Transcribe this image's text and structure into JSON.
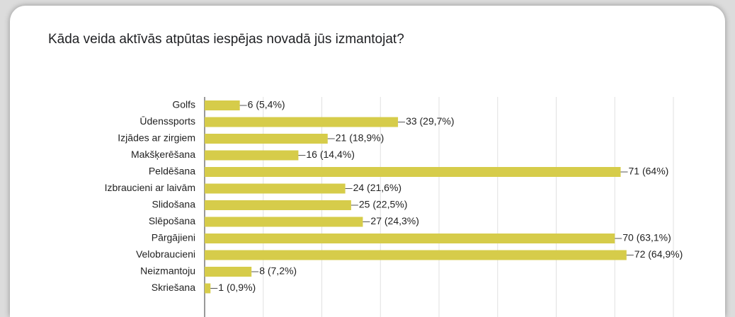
{
  "chart_data": {
    "type": "bar",
    "orientation": "horizontal",
    "title": "Kāda veida aktīvās atpūtas iespējas novadā jūs izmantojat?",
    "categories": [
      "Golfs",
      "Ūdenssports",
      "Izjādes ar zirgiem",
      "Makšķerēšana",
      "Peldēšana",
      "Izbraucieni ar laivām",
      "Slidošana",
      "Slēpošana",
      "Pārgājieni",
      "Velobraucieni",
      "Neizmantoju",
      "Skriešana"
    ],
    "values": [
      6,
      33,
      21,
      16,
      71,
      24,
      25,
      27,
      70,
      72,
      8,
      1
    ],
    "value_labels": [
      "6 (5,4%)",
      "33 (29,7%)",
      "21 (18,9%)",
      "16 (14,4%)",
      "71 (64%)",
      "24 (21,6%)",
      "25 (22,5%)",
      "27 (24,3%)",
      "70 (63,1%)",
      "72 (64,9%)",
      "8 (7,2%)",
      "1 (0,9%)"
    ],
    "color": "#d6cc4a",
    "xlim": [
      0,
      80
    ],
    "xticks": [
      0,
      10,
      20,
      30,
      40,
      50,
      60,
      70,
      80
    ],
    "grid": true
  }
}
